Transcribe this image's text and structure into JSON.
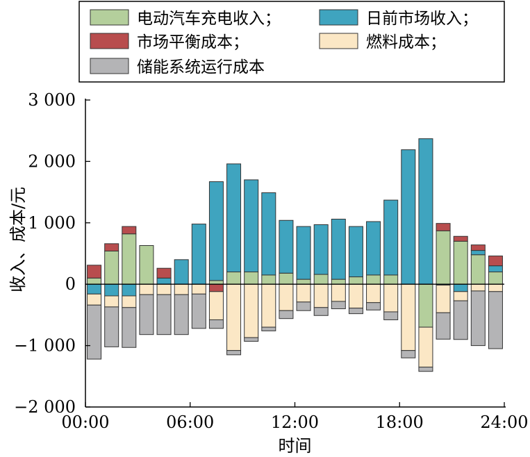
{
  "chart_data": {
    "type": "bar",
    "stacked": true,
    "xlabel": "时间",
    "ylabel": "收入、成本/元",
    "ylim": [
      -2000,
      3000
    ],
    "yticks": [
      -2000,
      -1000,
      0,
      1000,
      2000,
      3000
    ],
    "ytick_labels": [
      "−2 000",
      "−1 000",
      "0",
      "1 000",
      "2 000",
      "3 000"
    ],
    "xlim": [
      0,
      24
    ],
    "xticks": [
      0,
      6,
      12,
      18,
      24
    ],
    "xtick_labels": [
      "00:00",
      "06:00",
      "12:00",
      "18:00",
      "24:00"
    ],
    "x": [
      1,
      2,
      3,
      4,
      5,
      6,
      7,
      8,
      9,
      10,
      11,
      12,
      13,
      14,
      15,
      16,
      17,
      18,
      19,
      20,
      21,
      22,
      23,
      24
    ],
    "grid": false,
    "legend_position": "top",
    "series": [
      {
        "name": "电动汽车充电收入；",
        "color": "#b4cf9c",
        "values": [
          100,
          540,
          820,
          630,
          0,
          0,
          0,
          60,
          200,
          200,
          150,
          180,
          80,
          160,
          80,
          120,
          150,
          150,
          0,
          -700,
          870,
          700,
          480,
          200
        ]
      },
      {
        "name": "日前市场收入；",
        "color": "#3fa4bf",
        "values": [
          -160,
          -190,
          -190,
          0,
          100,
          400,
          980,
          1610,
          1760,
          1500,
          1340,
          860,
          860,
          810,
          980,
          820,
          870,
          1220,
          2190,
          2370,
          -15,
          -120,
          70,
          100
        ]
      },
      {
        "name": "市场平衡成本；",
        "color": "#b84d4e",
        "values": [
          210,
          120,
          120,
          0,
          160,
          0,
          0,
          -120,
          0,
          0,
          0,
          0,
          0,
          0,
          0,
          0,
          0,
          0,
          0,
          0,
          120,
          80,
          90,
          160
        ]
      },
      {
        "name": "燃料成本；",
        "color": "#fbe7c5",
        "values": [
          -180,
          -180,
          -190,
          -170,
          -170,
          -170,
          -160,
          -460,
          -1080,
          -870,
          -700,
          -430,
          -290,
          -380,
          -280,
          -390,
          -300,
          -450,
          -1080,
          -650,
          -450,
          -150,
          -110,
          -120
        ]
      },
      {
        "name": "储能系统运行成本",
        "color": "#b4b4b6",
        "values": [
          -880,
          -650,
          -650,
          -650,
          -650,
          -650,
          -560,
          -140,
          -70,
          -60,
          -60,
          -130,
          -140,
          -130,
          -120,
          -90,
          -120,
          -130,
          -120,
          -70,
          -430,
          -630,
          -890,
          -930
        ]
      }
    ]
  }
}
